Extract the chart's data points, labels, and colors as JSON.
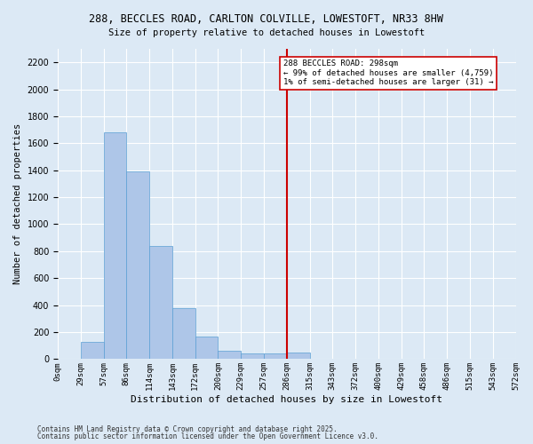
{
  "title_line1": "288, BECCLES ROAD, CARLTON COLVILLE, LOWESTOFT, NR33 8HW",
  "title_line2": "Size of property relative to detached houses in Lowestoft",
  "xlabel": "Distribution of detached houses by size in Lowestoft",
  "ylabel": "Number of detached properties",
  "bin_labels": [
    "0sqm",
    "29sqm",
    "57sqm",
    "86sqm",
    "114sqm",
    "143sqm",
    "172sqm",
    "200sqm",
    "229sqm",
    "257sqm",
    "286sqm",
    "315sqm",
    "343sqm",
    "372sqm",
    "400sqm",
    "429sqm",
    "458sqm",
    "486sqm",
    "515sqm",
    "543sqm",
    "572sqm"
  ],
  "bar_values": [
    0,
    130,
    1680,
    1390,
    840,
    380,
    170,
    60,
    45,
    45,
    50,
    0,
    0,
    0,
    0,
    0,
    0,
    0,
    0,
    0
  ],
  "bar_color": "#aec6e8",
  "bar_edge_color": "#5a9fd4",
  "vline_x": 10.0,
  "vline_color": "#cc0000",
  "bg_color": "#dce9f5",
  "grid_color": "#ffffff",
  "annotation_text": "288 BECCLES ROAD: 298sqm\n← 99% of detached houses are smaller (4,759)\n1% of semi-detached houses are larger (31) →",
  "annotation_box_color": "#ffffff",
  "annotation_box_edge": "#cc0000",
  "ylim": [
    0,
    2300
  ],
  "yticks": [
    0,
    200,
    400,
    600,
    800,
    1000,
    1200,
    1400,
    1600,
    1800,
    2000,
    2200
  ],
  "footer_line1": "Contains HM Land Registry data © Crown copyright and database right 2025.",
  "footer_line2": "Contains public sector information licensed under the Open Government Licence v3.0."
}
